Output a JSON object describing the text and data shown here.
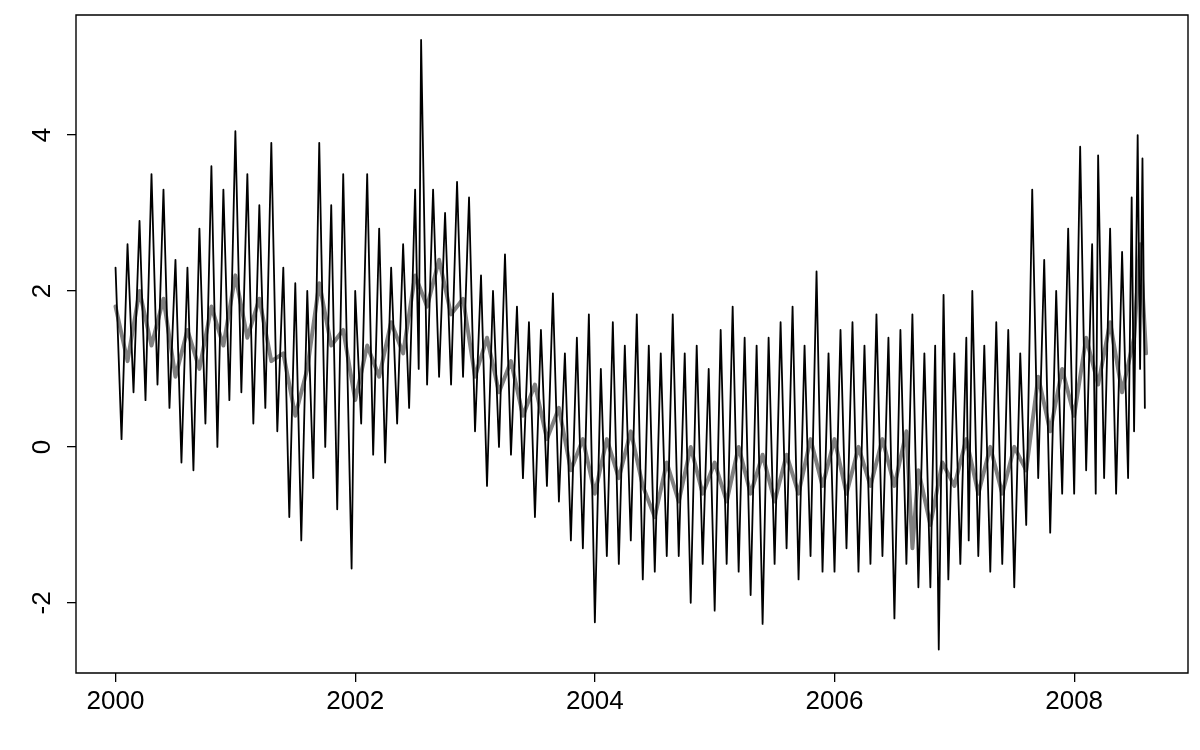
{
  "chart_data": {
    "type": "line",
    "marker": "none",
    "xlim": [
      1999.67,
      2008.95
    ],
    "xticks": [
      2000,
      2002,
      2004,
      2006,
      2008
    ],
    "ylim": [
      -2.9,
      5.54
    ],
    "yticks": [
      -2,
      0,
      2,
      4
    ],
    "series": [
      {
        "color": "#000000",
        "x": [
          2000.0,
          2000.05,
          2000.1,
          2000.15,
          2000.2,
          2000.25,
          2000.3,
          2000.35,
          2000.4,
          2000.45,
          2000.5,
          2000.55,
          2000.6,
          2000.65,
          2000.7,
          2000.75,
          2000.8,
          2000.85,
          2000.9,
          2000.95,
          2001.0,
          2001.05,
          2001.1,
          2001.15,
          2001.2,
          2001.25,
          2001.3,
          2001.35,
          2001.4,
          2001.45,
          2001.5,
          2001.55,
          2001.6,
          2001.65,
          2001.7,
          2001.75,
          2001.8,
          2001.85,
          2001.9,
          2001.97,
          2002.0,
          2002.05,
          2002.1,
          2002.15,
          2002.2,
          2002.25,
          2002.3,
          2002.35,
          2002.4,
          2002.45,
          2002.5,
          2002.53,
          2002.55,
          2002.6,
          2002.65,
          2002.7,
          2002.75,
          2002.8,
          2002.85,
          2002.9,
          2002.95,
          2003.0,
          2003.05,
          2003.1,
          2003.15,
          2003.2,
          2003.25,
          2003.3,
          2003.35,
          2003.4,
          2003.45,
          2003.5,
          2003.55,
          2003.6,
          2003.65,
          2003.7,
          2003.75,
          2003.8,
          2003.85,
          2003.9,
          2003.95,
          2004.0,
          2004.05,
          2004.1,
          2004.15,
          2004.2,
          2004.25,
          2004.3,
          2004.35,
          2004.4,
          2004.45,
          2004.5,
          2004.55,
          2004.6,
          2004.65,
          2004.7,
          2004.75,
          2004.8,
          2004.85,
          2004.9,
          2004.95,
          2005.0,
          2005.05,
          2005.1,
          2005.15,
          2005.2,
          2005.25,
          2005.3,
          2005.35,
          2005.4,
          2005.45,
          2005.5,
          2005.55,
          2005.6,
          2005.65,
          2005.7,
          2005.75,
          2005.8,
          2005.85,
          2005.9,
          2005.95,
          2006.0,
          2006.05,
          2006.1,
          2006.15,
          2006.2,
          2006.25,
          2006.3,
          2006.35,
          2006.4,
          2006.45,
          2006.5,
          2006.55,
          2006.6,
          2006.65,
          2006.7,
          2006.75,
          2006.8,
          2006.84,
          2006.87,
          2006.91,
          2006.95,
          2007.0,
          2007.05,
          2007.1,
          2007.12,
          2007.15,
          2007.2,
          2007.25,
          2007.3,
          2007.35,
          2007.4,
          2007.45,
          2007.5,
          2007.55,
          2007.6,
          2007.65,
          2007.7,
          2007.75,
          2007.8,
          2007.85,
          2007.9,
          2007.95,
          2008.0,
          2008.05,
          2008.1,
          2008.15,
          2008.18,
          2008.2,
          2008.25,
          2008.3,
          2008.35,
          2008.4,
          2008.45,
          2008.48,
          2008.5,
          2008.53,
          2008.55,
          2008.57,
          2008.59
        ],
        "values": [
          2.3,
          0.1,
          2.6,
          0.7,
          2.9,
          0.6,
          3.5,
          0.8,
          3.3,
          0.5,
          2.4,
          -0.2,
          2.3,
          -0.3,
          2.8,
          0.3,
          3.6,
          0.0,
          3.3,
          0.6,
          4.05,
          0.7,
          3.5,
          0.3,
          3.1,
          0.5,
          3.9,
          0.2,
          2.3,
          -0.9,
          2.1,
          -1.2,
          2.0,
          -0.4,
          3.9,
          0.0,
          3.1,
          -0.8,
          3.5,
          -1.56,
          2.0,
          0.3,
          3.5,
          -0.1,
          2.8,
          -0.2,
          2.3,
          0.3,
          2.6,
          0.5,
          3.3,
          1.0,
          5.22,
          0.8,
          3.3,
          0.9,
          3.0,
          0.8,
          3.4,
          0.9,
          3.2,
          0.2,
          2.2,
          -0.5,
          2.0,
          0.0,
          2.47,
          -0.1,
          1.8,
          -0.4,
          1.6,
          -0.9,
          1.5,
          -0.5,
          1.97,
          -0.7,
          1.2,
          -1.2,
          1.4,
          -1.3,
          1.7,
          -2.25,
          1.0,
          -1.4,
          1.6,
          -1.5,
          1.3,
          -1.2,
          1.7,
          -1.7,
          1.3,
          -1.6,
          1.2,
          -1.4,
          1.7,
          -1.4,
          1.2,
          -2.0,
          1.3,
          -1.5,
          1.0,
          -2.1,
          1.5,
          -1.5,
          1.8,
          -1.6,
          1.4,
          -1.9,
          1.3,
          -2.27,
          1.4,
          -1.5,
          1.6,
          -1.3,
          1.8,
          -1.7,
          1.3,
          -1.4,
          2.25,
          -1.6,
          1.2,
          -1.6,
          1.5,
          -1.3,
          1.6,
          -1.6,
          1.3,
          -1.5,
          1.7,
          -1.4,
          1.4,
          -2.2,
          1.5,
          -1.5,
          1.7,
          -1.8,
          1.2,
          -1.8,
          1.3,
          -2.6,
          1.95,
          -1.7,
          1.2,
          -1.5,
          1.4,
          -1.2,
          2.0,
          -1.4,
          1.3,
          -1.6,
          1.6,
          -1.5,
          1.5,
          -1.8,
          1.2,
          -1.0,
          3.3,
          -0.4,
          2.4,
          -1.1,
          2.0,
          -0.6,
          2.8,
          -0.6,
          3.85,
          -0.3,
          2.6,
          -0.6,
          3.74,
          -0.4,
          2.8,
          -0.6,
          2.5,
          -0.4,
          3.2,
          0.2,
          4.0,
          1.0,
          3.7,
          0.5
        ]
      },
      {
        "color": "#808080",
        "x": [
          2000.0,
          2000.1,
          2000.2,
          2000.3,
          2000.4,
          2000.5,
          2000.6,
          2000.7,
          2000.8,
          2000.9,
          2001.0,
          2001.1,
          2001.2,
          2001.3,
          2001.4,
          2001.5,
          2001.6,
          2001.7,
          2001.8,
          2001.9,
          2002.0,
          2002.1,
          2002.2,
          2002.3,
          2002.4,
          2002.5,
          2002.6,
          2002.7,
          2002.8,
          2002.9,
          2003.0,
          2003.1,
          2003.2,
          2003.3,
          2003.4,
          2003.5,
          2003.6,
          2003.7,
          2003.8,
          2003.9,
          2004.0,
          2004.1,
          2004.2,
          2004.3,
          2004.4,
          2004.5,
          2004.6,
          2004.7,
          2004.8,
          2004.9,
          2005.0,
          2005.1,
          2005.2,
          2005.3,
          2005.4,
          2005.5,
          2005.6,
          2005.7,
          2005.8,
          2005.9,
          2006.0,
          2006.1,
          2006.2,
          2006.3,
          2006.4,
          2006.5,
          2006.6,
          2006.65,
          2006.7,
          2006.8,
          2006.9,
          2007.0,
          2007.1,
          2007.2,
          2007.3,
          2007.4,
          2007.5,
          2007.6,
          2007.7,
          2007.8,
          2007.9,
          2008.0,
          2008.1,
          2008.2,
          2008.3,
          2008.4,
          2008.5,
          2008.55,
          2008.6
        ],
        "values": [
          1.8,
          1.1,
          2.0,
          1.3,
          1.9,
          0.9,
          1.5,
          1.0,
          1.8,
          1.3,
          2.2,
          1.4,
          1.9,
          1.1,
          1.2,
          0.4,
          1.0,
          2.1,
          1.3,
          1.5,
          0.6,
          1.3,
          0.9,
          1.6,
          1.2,
          2.2,
          1.8,
          2.4,
          1.7,
          1.9,
          0.9,
          1.4,
          0.7,
          1.1,
          0.4,
          0.8,
          0.1,
          0.5,
          -0.3,
          0.1,
          -0.6,
          0.1,
          -0.4,
          0.2,
          -0.5,
          -0.9,
          -0.2,
          -0.7,
          0.0,
          -0.6,
          -0.2,
          -0.7,
          0.0,
          -0.6,
          -0.1,
          -0.7,
          -0.1,
          -0.6,
          0.1,
          -0.5,
          0.1,
          -0.6,
          0.0,
          -0.5,
          0.1,
          -0.5,
          0.2,
          -1.3,
          -0.3,
          -1.0,
          -0.2,
          -0.5,
          0.1,
          -0.6,
          0.0,
          -0.6,
          0.0,
          -0.3,
          0.9,
          0.2,
          1.0,
          0.4,
          1.4,
          0.8,
          1.6,
          0.7,
          1.4,
          2.6,
          1.2
        ]
      }
    ]
  }
}
